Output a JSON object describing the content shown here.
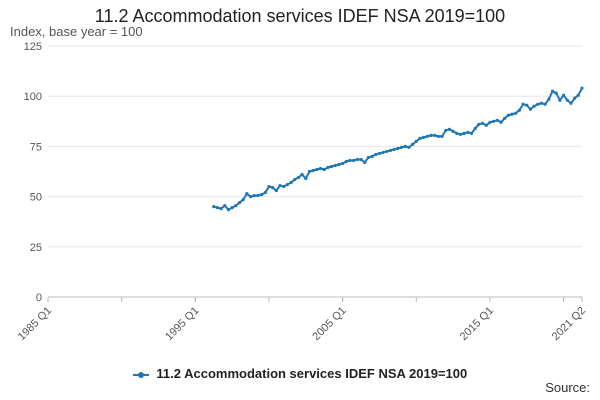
{
  "title": "11.2 Accommodation services IDEF NSA 2019=100",
  "y_unit_label": "Index, base year = 100",
  "source_label": "Source:",
  "chart_data": {
    "type": "line",
    "ylim": [
      0,
      125
    ],
    "y_ticks": [
      0,
      25,
      50,
      75,
      100,
      125
    ],
    "x_range": [
      "1985 Q1",
      "2021 Q2"
    ],
    "x_ticks": [
      "1985 Q1",
      "1995 Q1",
      "2005 Q1",
      "2015 Q1",
      "2021 Q2"
    ],
    "grid": true,
    "legend_position": "bottom",
    "color": "#1f77b4",
    "series": [
      {
        "name": "11.2 Accommodation services IDEF NSA 2019=100",
        "points": [
          [
            "1996 Q2",
            45
          ],
          [
            "1996 Q3",
            44.5
          ],
          [
            "1996 Q4",
            44
          ],
          [
            "1997 Q1",
            45.5
          ],
          [
            "1997 Q2",
            43.5
          ],
          [
            "1997 Q3",
            44.5
          ],
          [
            "1997 Q4",
            45.5
          ],
          [
            "1998 Q1",
            47
          ],
          [
            "1998 Q2",
            48.5
          ],
          [
            "1998 Q3",
            51.5
          ],
          [
            "1998 Q4",
            50
          ],
          [
            "1999 Q1",
            50.5
          ],
          [
            "1999 Q2",
            50.5
          ],
          [
            "1999 Q3",
            51
          ],
          [
            "1999 Q4",
            52
          ],
          [
            "2000 Q1",
            55
          ],
          [
            "2000 Q2",
            54.5
          ],
          [
            "2000 Q3",
            53
          ],
          [
            "2000 Q4",
            55.5
          ],
          [
            "2001 Q1",
            55
          ],
          [
            "2001 Q2",
            56
          ],
          [
            "2001 Q3",
            57
          ],
          [
            "2001 Q4",
            58.5
          ],
          [
            "2002 Q1",
            59.5
          ],
          [
            "2002 Q2",
            61
          ],
          [
            "2002 Q3",
            59
          ],
          [
            "2002 Q4",
            62.5
          ],
          [
            "2003 Q1",
            63
          ],
          [
            "2003 Q2",
            63.5
          ],
          [
            "2003 Q3",
            64
          ],
          [
            "2003 Q4",
            63.5
          ],
          [
            "2004 Q1",
            64.5
          ],
          [
            "2004 Q2",
            65
          ],
          [
            "2004 Q3",
            65.5
          ],
          [
            "2004 Q4",
            66
          ],
          [
            "2005 Q1",
            66.5
          ],
          [
            "2005 Q2",
            67.5
          ],
          [
            "2005 Q3",
            68
          ],
          [
            "2005 Q4",
            68
          ],
          [
            "2006 Q1",
            68.5
          ],
          [
            "2006 Q2",
            68.5
          ],
          [
            "2006 Q3",
            67
          ],
          [
            "2006 Q4",
            69.5
          ],
          [
            "2007 Q1",
            70
          ],
          [
            "2007 Q2",
            71
          ],
          [
            "2007 Q3",
            71.5
          ],
          [
            "2007 Q4",
            72
          ],
          [
            "2008 Q1",
            72.5
          ],
          [
            "2008 Q2",
            73
          ],
          [
            "2008 Q3",
            73.5
          ],
          [
            "2008 Q4",
            74
          ],
          [
            "2009 Q1",
            74.5
          ],
          [
            "2009 Q2",
            75
          ],
          [
            "2009 Q3",
            74.5
          ],
          [
            "2009 Q4",
            76
          ],
          [
            "2010 Q1",
            77.5
          ],
          [
            "2010 Q2",
            79
          ],
          [
            "2010 Q3",
            79.5
          ],
          [
            "2010 Q4",
            80
          ],
          [
            "2011 Q1",
            80.5
          ],
          [
            "2011 Q2",
            80.5
          ],
          [
            "2011 Q3",
            80
          ],
          [
            "2011 Q4",
            80
          ],
          [
            "2012 Q1",
            83
          ],
          [
            "2012 Q2",
            83.5
          ],
          [
            "2012 Q3",
            82.5
          ],
          [
            "2012 Q4",
            81.5
          ],
          [
            "2013 Q1",
            81
          ],
          [
            "2013 Q2",
            81.5
          ],
          [
            "2013 Q3",
            82
          ],
          [
            "2013 Q4",
            81.5
          ],
          [
            "2014 Q1",
            84
          ],
          [
            "2014 Q2",
            86
          ],
          [
            "2014 Q3",
            86.5
          ],
          [
            "2014 Q4",
            85.5
          ],
          [
            "2015 Q1",
            87
          ],
          [
            "2015 Q2",
            87.5
          ],
          [
            "2015 Q3",
            88
          ],
          [
            "2015 Q4",
            87
          ],
          [
            "2016 Q1",
            89
          ],
          [
            "2016 Q2",
            90.5
          ],
          [
            "2016 Q3",
            91
          ],
          [
            "2016 Q4",
            91.5
          ],
          [
            "2017 Q1",
            93
          ],
          [
            "2017 Q2",
            96
          ],
          [
            "2017 Q3",
            95.5
          ],
          [
            "2017 Q4",
            93.5
          ],
          [
            "2018 Q1",
            95
          ],
          [
            "2018 Q2",
            96
          ],
          [
            "2018 Q3",
            96.5
          ],
          [
            "2018 Q4",
            96
          ],
          [
            "2019 Q1",
            98.5
          ],
          [
            "2019 Q2",
            102.5
          ],
          [
            "2019 Q3",
            101.5
          ],
          [
            "2019 Q4",
            98
          ],
          [
            "2020 Q1",
            100.5
          ],
          [
            "2020 Q2",
            98
          ],
          [
            "2020 Q3",
            96.5
          ],
          [
            "2020 Q4",
            99
          ],
          [
            "2021 Q1",
            100.5
          ],
          [
            "2021 Q2",
            104
          ]
        ]
      }
    ]
  }
}
